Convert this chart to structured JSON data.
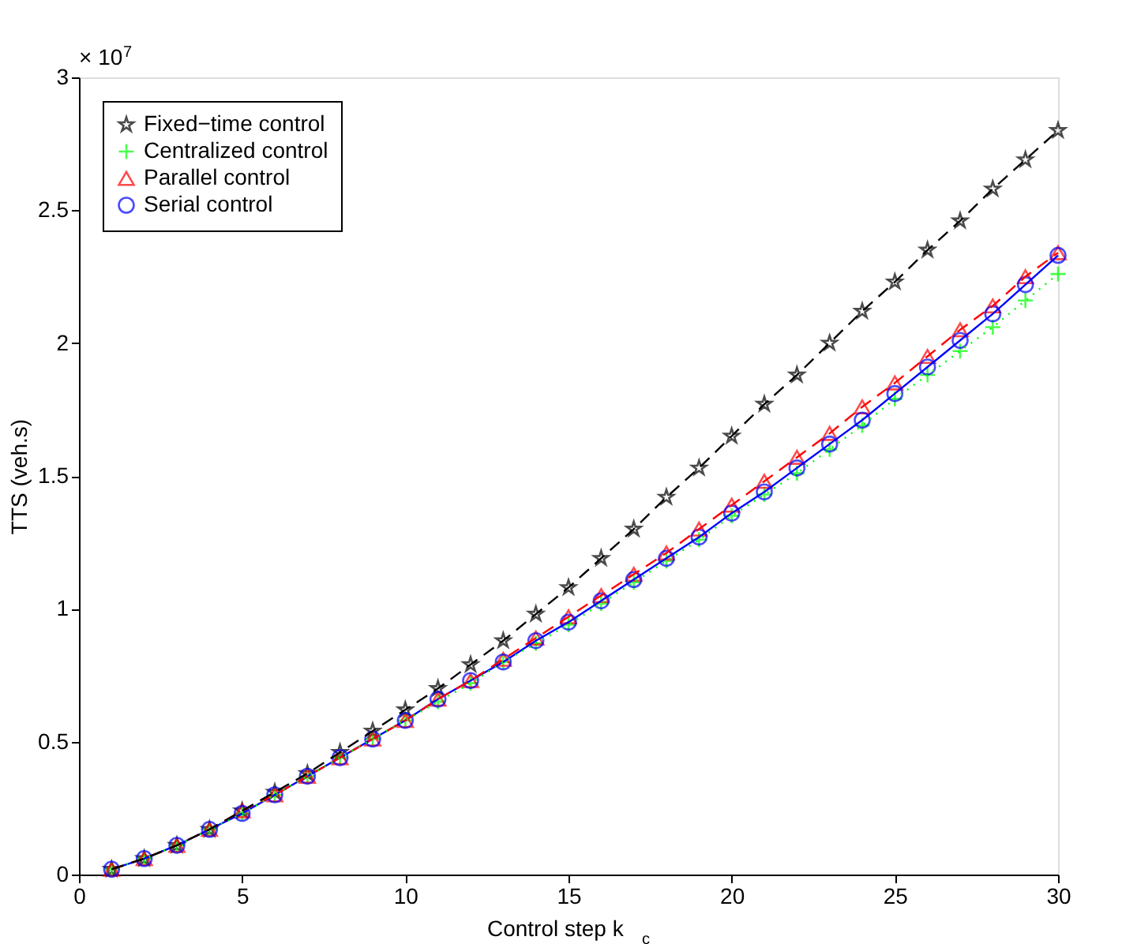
{
  "chart_data": {
    "type": "line",
    "xlabel": "Control step k$_{c}$",
    "ylabel": "TTS (veh.s)",
    "annotations": [
      "× 10$^{7}$"
    ],
    "x": [
      1,
      2,
      3,
      4,
      5,
      6,
      7,
      8,
      9,
      10,
      11,
      12,
      13,
      14,
      15,
      16,
      17,
      18,
      19,
      20,
      21,
      22,
      23,
      24,
      25,
      26,
      27,
      28,
      29,
      30
    ],
    "series": [
      {
        "name": "Fixed−time control",
        "color": "#000000",
        "marker": "star",
        "line_style": "dashed",
        "values": [
          0.02,
          0.06,
          0.11,
          0.17,
          0.24,
          0.31,
          0.38,
          0.46,
          0.54,
          0.62,
          0.7,
          0.79,
          0.88,
          0.98,
          1.08,
          1.19,
          1.3,
          1.42,
          1.53,
          1.65,
          1.77,
          1.88,
          2.0,
          2.12,
          2.23,
          2.35,
          2.46,
          2.58,
          2.69,
          2.8
        ]
      },
      {
        "name": "Centralized control",
        "color": "#00ff00",
        "marker": "cross",
        "line_style": "dotted",
        "values": [
          0.02,
          0.06,
          0.11,
          0.17,
          0.23,
          0.3,
          0.37,
          0.44,
          0.51,
          0.58,
          0.65,
          0.72,
          0.8,
          0.87,
          0.94,
          1.02,
          1.1,
          1.18,
          1.26,
          1.35,
          1.43,
          1.51,
          1.6,
          1.69,
          1.79,
          1.88,
          1.97,
          2.06,
          2.16,
          2.26
        ]
      },
      {
        "name": "Parallel control",
        "color": "#ff0000",
        "marker": "triangle",
        "line_style": "dashed",
        "values": [
          0.02,
          0.06,
          0.11,
          0.17,
          0.24,
          0.3,
          0.37,
          0.44,
          0.51,
          0.58,
          0.66,
          0.73,
          0.81,
          0.89,
          0.97,
          1.05,
          1.13,
          1.21,
          1.3,
          1.39,
          1.48,
          1.57,
          1.66,
          1.76,
          1.85,
          1.95,
          2.05,
          2.14,
          2.25,
          2.34
        ]
      },
      {
        "name": "Serial control",
        "color": "#0000ff",
        "marker": "circle",
        "line_style": "solid",
        "values": [
          0.02,
          0.06,
          0.11,
          0.17,
          0.23,
          0.3,
          0.37,
          0.44,
          0.51,
          0.58,
          0.66,
          0.73,
          0.8,
          0.88,
          0.95,
          1.03,
          1.11,
          1.19,
          1.27,
          1.36,
          1.44,
          1.53,
          1.62,
          1.71,
          1.81,
          1.91,
          2.01,
          2.11,
          2.22,
          2.33
        ]
      }
    ],
    "xlim": [
      0,
      30
    ],
    "xticks": [
      0,
      5,
      10,
      15,
      20,
      25,
      30
    ],
    "ylim": [
      0,
      3
    ],
    "yticks": [
      0,
      0.5,
      1,
      1.5,
      2,
      2.5,
      3
    ],
    "grid": false,
    "legend": "top left"
  }
}
